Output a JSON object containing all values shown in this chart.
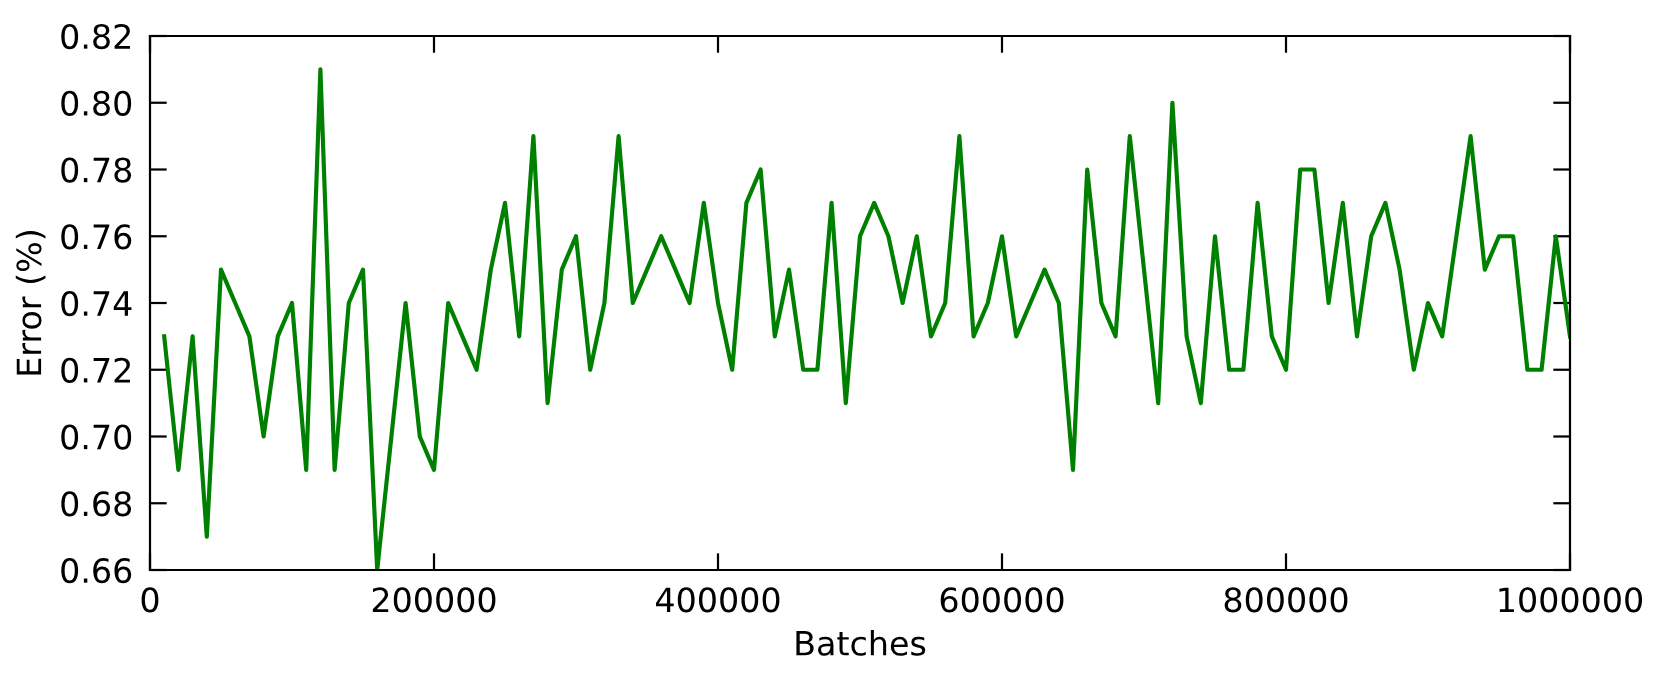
{
  "chart_data": {
    "type": "line",
    "xlabel": "Batches",
    "ylabel": "Error (%)",
    "x": [
      10000,
      20000,
      30000,
      40000,
      50000,
      60000,
      70000,
      80000,
      90000,
      100000,
      110000,
      120000,
      130000,
      140000,
      150000,
      160000,
      170000,
      180000,
      190000,
      200000,
      210000,
      220000,
      230000,
      240000,
      250000,
      260000,
      270000,
      280000,
      290000,
      300000,
      310000,
      320000,
      330000,
      340000,
      350000,
      360000,
      370000,
      380000,
      390000,
      400000,
      410000,
      420000,
      430000,
      440000,
      450000,
      460000,
      470000,
      480000,
      490000,
      500000,
      510000,
      520000,
      530000,
      540000,
      550000,
      560000,
      570000,
      580000,
      590000,
      600000,
      610000,
      620000,
      630000,
      640000,
      650000,
      660000,
      670000,
      680000,
      690000,
      700000,
      710000,
      720000,
      730000,
      740000,
      750000,
      760000,
      770000,
      780000,
      790000,
      800000,
      810000,
      820000,
      830000,
      840000,
      850000,
      860000,
      870000,
      880000,
      890000,
      900000,
      910000,
      920000,
      930000,
      940000,
      950000,
      960000,
      970000,
      980000,
      990000,
      1000000
    ],
    "series": [
      {
        "color": "#008000",
        "values": [
          0.73,
          0.69,
          0.73,
          0.67,
          0.75,
          0.74,
          0.73,
          0.7,
          0.73,
          0.74,
          0.69,
          0.81,
          0.69,
          0.74,
          0.75,
          0.66,
          0.7,
          0.74,
          0.7,
          0.69,
          0.74,
          0.73,
          0.72,
          0.75,
          0.77,
          0.73,
          0.79,
          0.71,
          0.75,
          0.76,
          0.72,
          0.74,
          0.79,
          0.74,
          0.75,
          0.76,
          0.75,
          0.74,
          0.77,
          0.74,
          0.72,
          0.77,
          0.78,
          0.73,
          0.75,
          0.72,
          0.72,
          0.77,
          0.71,
          0.76,
          0.77,
          0.76,
          0.74,
          0.76,
          0.73,
          0.74,
          0.79,
          0.73,
          0.74,
          0.76,
          0.73,
          0.74,
          0.75,
          0.74,
          0.69,
          0.78,
          0.74,
          0.73,
          0.79,
          0.75,
          0.71,
          0.8,
          0.73,
          0.71,
          0.76,
          0.72,
          0.72,
          0.77,
          0.73,
          0.72,
          0.78,
          0.78,
          0.74,
          0.77,
          0.73,
          0.76,
          0.77,
          0.75,
          0.72,
          0.74,
          0.73,
          0.76,
          0.79,
          0.75,
          0.76,
          0.76,
          0.72,
          0.72,
          0.76,
          0.73
        ]
      }
    ],
    "xlim": [
      0,
      1000000
    ],
    "ylim": [
      0.66,
      0.82
    ],
    "xticks": [
      0,
      200000,
      400000,
      600000,
      800000,
      1000000
    ],
    "yticks": [
      {
        "value": 0.66,
        "label": "0.66"
      },
      {
        "value": 0.68,
        "label": "0.68"
      },
      {
        "value": 0.7,
        "label": "0.70"
      },
      {
        "value": 0.72,
        "label": "0.72"
      },
      {
        "value": 0.74,
        "label": "0.74"
      },
      {
        "value": 0.76,
        "label": "0.76"
      },
      {
        "value": 0.78,
        "label": "0.78"
      },
      {
        "value": 0.8,
        "label": "0.80"
      },
      {
        "value": 0.82,
        "label": "0.82"
      }
    ],
    "grid": false,
    "marker": "none",
    "line_style": "solid",
    "legend": false
  }
}
